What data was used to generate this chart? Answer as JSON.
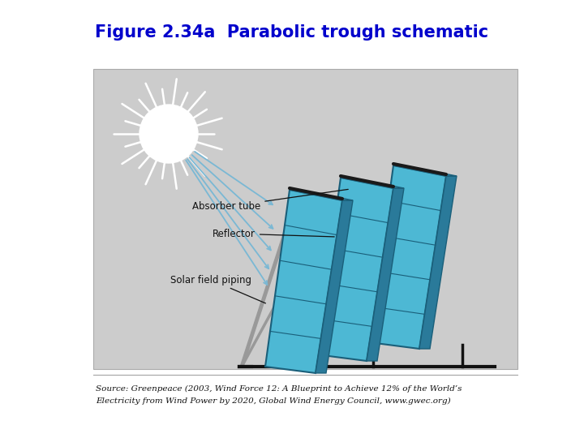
{
  "title": "Figure 2.34a  Parabolic trough schematic",
  "title_color": "#0000CC",
  "title_fontsize": 15,
  "source_line1": "Source: Greenpeace (2003, Wind Force 12: A Blueprint to Achieve 12% of the World’s",
  "source_line2": "Electricity from Wind Power by 2020, Global Wind Energy Council, www.gwec.org)",
  "source_fontsize": 7.5,
  "bg_color": "#ffffff",
  "diagram_bg": "#cccccc",
  "trough_color": "#4db8d4",
  "trough_edge_color": "#1a5f7a",
  "trough_dark": "#2a7a9a",
  "sun_color": "#ffffff",
  "ray_color": "#7ab8d4",
  "support_color": "#999999",
  "ground_color": "#111111",
  "label_color": "#111111",
  "label_absorber": "Absorber tube",
  "label_reflector": "Reflector",
  "label_piping": "Solar field piping",
  "label_fontsize": 8.5
}
